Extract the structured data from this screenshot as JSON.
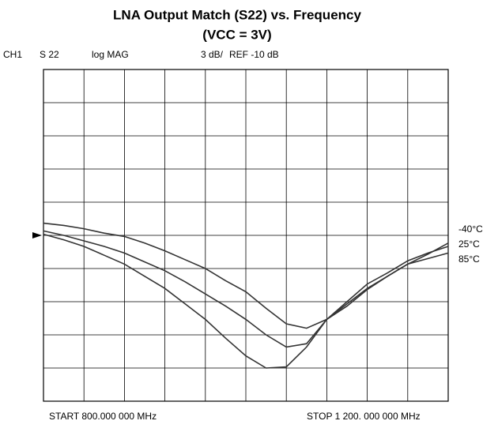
{
  "chart_data": {
    "type": "line",
    "title": "LNA Output Match (S22) vs. Frequency",
    "subtitle": "(VCC = 3V)",
    "channel": "CH1",
    "parameter": "S 22",
    "format": "log MAG",
    "scale": "3 dB/",
    "reference": "REF -10 dB",
    "ref_value": -10,
    "start_label": "START  800.000 000 MHz",
    "stop_label": "STOP  1  200. 000  000 MHz",
    "x": [
      800,
      820,
      840,
      860,
      880,
      900,
      920,
      940,
      960,
      980,
      1000,
      1020,
      1040,
      1060,
      1080,
      1100,
      1120,
      1140,
      1160,
      1180,
      1200
    ],
    "xlim": [
      800,
      1200
    ],
    "xticks": [
      800,
      840,
      880,
      920,
      960,
      1000,
      1040,
      1080,
      1120,
      1160,
      1200
    ],
    "ylim": [
      -25,
      5
    ],
    "yticks": [
      -25,
      -22,
      -19,
      -16,
      -13,
      -10,
      -7,
      -4,
      -1,
      2,
      5
    ],
    "grid": true,
    "series": [
      {
        "name": "-40°C",
        "color": "#333333",
        "values": [
          -8.9,
          -9.1,
          -9.4,
          -9.8,
          -10.1,
          -10.7,
          -11.4,
          -12.2,
          -13.0,
          -14.1,
          -15.1,
          -16.6,
          -18.0,
          -18.4,
          -17.6,
          -16.4,
          -14.9,
          -13.7,
          -12.6,
          -11.7,
          -10.7
        ]
      },
      {
        "name": "25°C",
        "color": "#333333",
        "values": [
          -9.6,
          -10.0,
          -10.5,
          -11.0,
          -11.6,
          -12.4,
          -13.2,
          -14.2,
          -15.3,
          -16.4,
          -17.6,
          -19.0,
          -20.1,
          -19.8,
          -17.6,
          -16.0,
          -14.4,
          -13.4,
          -12.3,
          -11.6,
          -11.0
        ]
      },
      {
        "name": "85°C",
        "color": "#333333",
        "values": [
          -9.9,
          -10.4,
          -11.0,
          -11.8,
          -12.6,
          -13.7,
          -14.8,
          -16.2,
          -17.6,
          -19.3,
          -20.9,
          -22.0,
          -21.9,
          -20.1,
          -17.6,
          -16.2,
          -14.8,
          -13.7,
          -12.6,
          -12.1,
          -11.6
        ]
      }
    ]
  }
}
